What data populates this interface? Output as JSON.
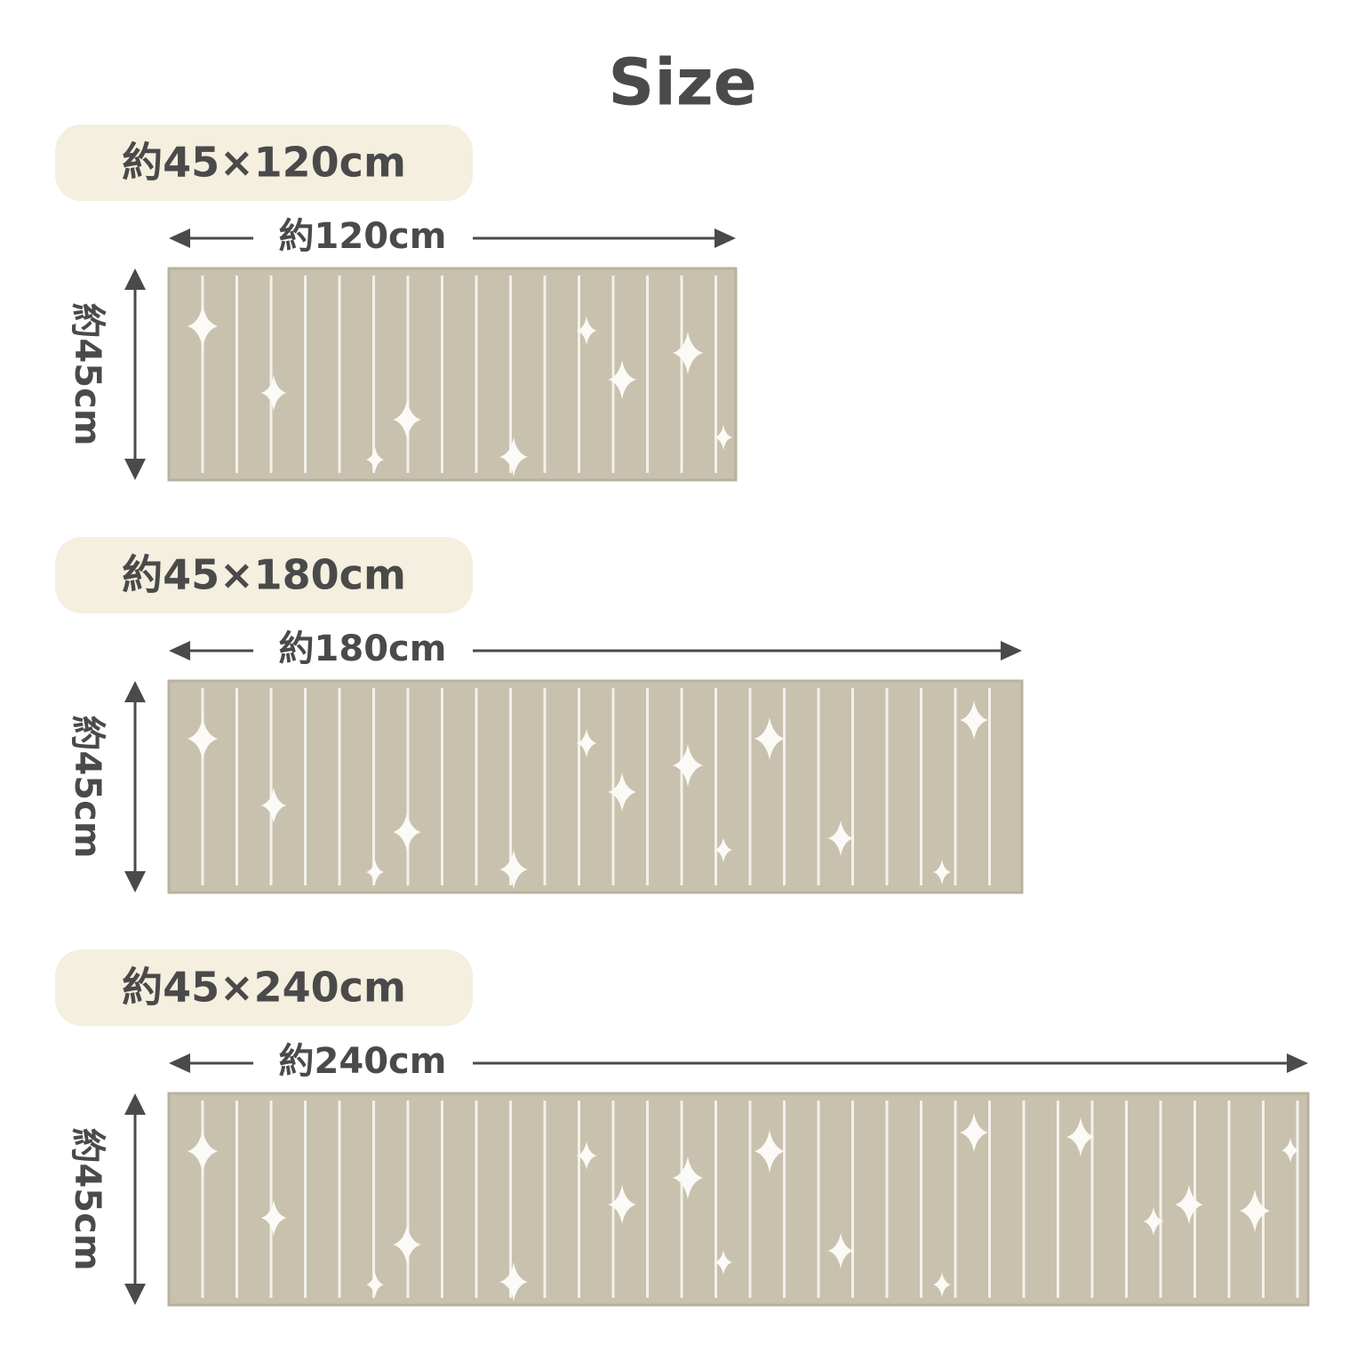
{
  "header": {
    "title": "Size"
  },
  "sizes": [
    {
      "label": "約45×120cm",
      "width_label": "約120cm",
      "height_label": "約45cm"
    },
    {
      "label": "約45×180cm",
      "width_label": "約180cm",
      "height_label": "約45cm"
    },
    {
      "label": "約45×240cm",
      "width_label": "約240cm",
      "height_label": "約45cm"
    }
  ]
}
